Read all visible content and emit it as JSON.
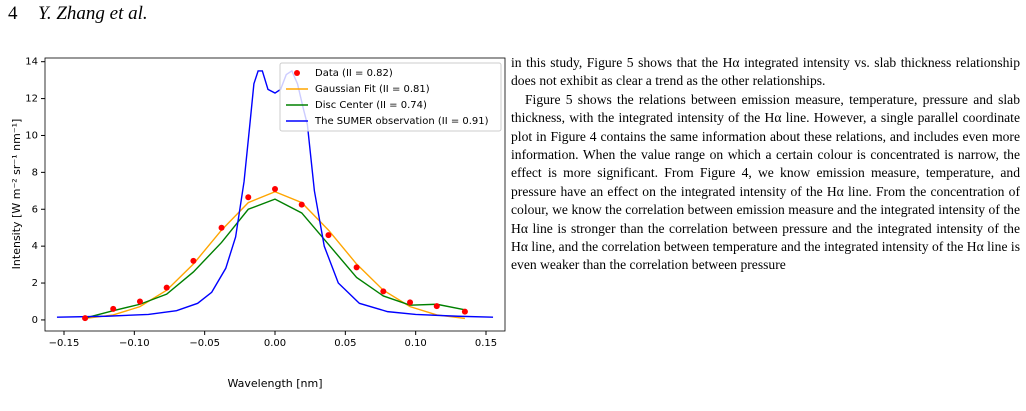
{
  "header": {
    "page": "4",
    "authors": "Y. Zhang et al."
  },
  "paragraphs": [
    "in this study, Figure 5 shows that the Hα integrated intensity vs. slab thickness relationship does not exhibit as clear a trend as the other relationships.",
    "Figure 5 shows the relations between emission measure, temperature, pressure and slab thickness, with the integrated intensity of the Hα line. However, a single parallel coordinate plot in Figure 4 contains the same information about these relations, and includes even more information. When the value range on which a certain colour is concentrated is narrow, the effect is more significant. From Figure 4, we know emission measure, temperature, and pressure have an effect on the integrated intensity of the Hα line. From the concentration of colour, we know the correlation between emission measure and the integrated intensity of the Hα line is stronger than the correlation between pressure and the integrated intensity of the Hα line, and the correlation between temperature and the integrated intensity of the Hα line is even weaker than the correlation between pressure"
  ],
  "chart_data": {
    "type": "line",
    "xlabel": "Wavelength [nm]",
    "ylabel": "Intensity [W m⁻² sr⁻¹ nm⁻¹]",
    "xlim": [
      -0.1635,
      0.1635
    ],
    "ylim": [
      -0.6,
      14.2
    ],
    "xticks": [
      {
        "value": -0.15,
        "label": "−0.15"
      },
      {
        "value": -0.1,
        "label": "−0.10"
      },
      {
        "value": -0.05,
        "label": "−0.05"
      },
      {
        "value": 0,
        "label": "0.00"
      },
      {
        "value": 0.05,
        "label": "0.05"
      },
      {
        "value": 0.1,
        "label": "0.10"
      },
      {
        "value": 0.15,
        "label": "0.15"
      }
    ],
    "yticks": [
      0,
      2,
      4,
      6,
      8,
      10,
      12,
      14
    ],
    "legend": "upper right",
    "series": [
      {
        "name": "Data (II = 0.82)",
        "color": "#ff0000",
        "style": "marker",
        "x": [
          -0.135,
          -0.115,
          -0.096,
          -0.077,
          -0.058,
          -0.038,
          -0.019,
          0,
          0.019,
          0.038,
          0.058,
          0.077,
          0.096,
          0.115,
          0.135
        ],
        "values": [
          0.1,
          0.6,
          1.0,
          1.75,
          3.2,
          5.0,
          6.65,
          7.1,
          6.25,
          4.6,
          2.85,
          1.55,
          0.95,
          0.75,
          0.45
        ]
      },
      {
        "name": "Gaussian Fit (II = 0.81)",
        "color": "#ffa500",
        "style": "line",
        "x": [
          -0.135,
          -0.115,
          -0.096,
          -0.077,
          -0.058,
          -0.038,
          -0.019,
          0,
          0.019,
          0.038,
          0.058,
          0.077,
          0.096,
          0.115,
          0.135
        ],
        "values": [
          0.08,
          0.27,
          0.72,
          1.61,
          3.03,
          4.87,
          6.36,
          6.95,
          6.36,
          4.87,
          3.03,
          1.61,
          0.72,
          0.27,
          0.08
        ]
      },
      {
        "name": "Disc Center (II = 0.74)",
        "color": "#008000",
        "style": "line",
        "x": [
          -0.135,
          -0.115,
          -0.096,
          -0.077,
          -0.058,
          -0.038,
          -0.019,
          0,
          0.019,
          0.038,
          0.058,
          0.077,
          0.096,
          0.115,
          0.135
        ],
        "values": [
          0.1,
          0.5,
          0.85,
          1.4,
          2.6,
          4.2,
          6.0,
          6.55,
          5.8,
          4.1,
          2.3,
          1.3,
          0.8,
          0.85,
          0.55
        ]
      },
      {
        "name": "The SUMER observation (II = 0.91)",
        "color": "#0000ff",
        "style": "line",
        "x": [
          -0.155,
          -0.12,
          -0.09,
          -0.07,
          -0.055,
          -0.045,
          -0.035,
          -0.028,
          -0.022,
          -0.018,
          -0.015,
          -0.012,
          -0.009,
          -0.005,
          0,
          0.004,
          0.008,
          0.012,
          0.016,
          0.02,
          0.023,
          0.028,
          0.035,
          0.045,
          0.06,
          0.08,
          0.1,
          0.13,
          0.155
        ],
        "values": [
          0.15,
          0.2,
          0.3,
          0.5,
          0.9,
          1.5,
          2.8,
          4.5,
          7.5,
          10.5,
          12.8,
          13.5,
          13.5,
          12.5,
          12.3,
          12.5,
          13.3,
          13.5,
          12.8,
          11.5,
          10.6,
          7.0,
          4.0,
          2.0,
          0.9,
          0.45,
          0.3,
          0.2,
          0.15
        ]
      }
    ]
  }
}
